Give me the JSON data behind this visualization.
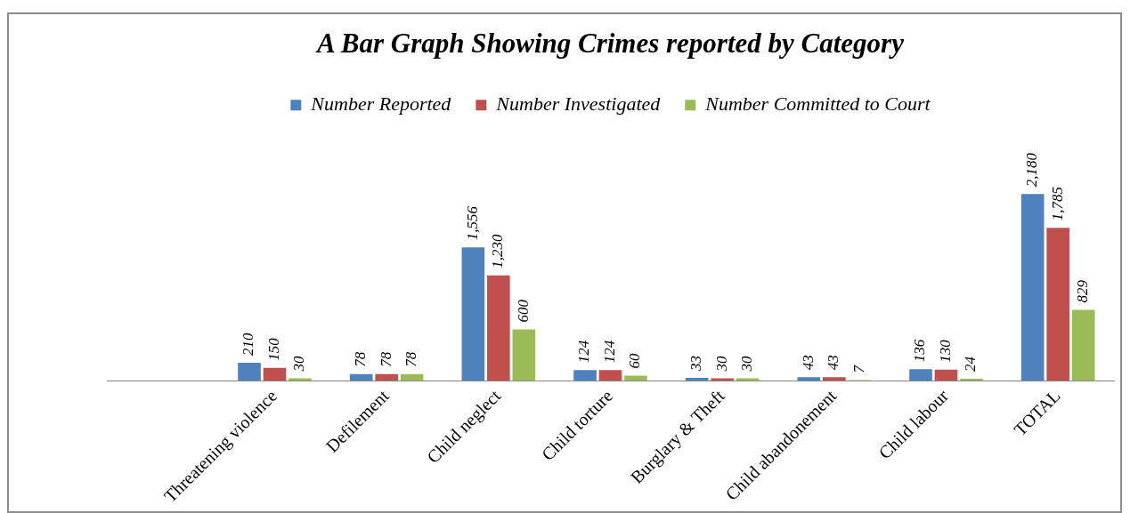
{
  "chart_data": {
    "type": "bar",
    "title": "A Bar Graph Showing Crimes reported by Category",
    "categories": [
      null,
      "Threatening violence",
      "Defilement",
      "Child neglect",
      "Child torture",
      "Burglary & Theft",
      "Child abandonement",
      "Child labour",
      "TOTAL"
    ],
    "series": [
      {
        "name": "Number Reported",
        "color": "#4f81bd",
        "values": [
          null,
          210,
          78,
          1556,
          124,
          33,
          43,
          136,
          2180
        ],
        "value_labels": [
          null,
          "210",
          "78",
          "1,556",
          "124",
          "33",
          "43",
          "136",
          "2,180"
        ]
      },
      {
        "name": "Number Investigated",
        "color": "#c0504d",
        "values": [
          null,
          150,
          78,
          1230,
          124,
          30,
          43,
          130,
          1785
        ],
        "value_labels": [
          null,
          "150",
          "78",
          "1,230",
          "124",
          "30",
          "43",
          "130",
          "1,785"
        ]
      },
      {
        "name": "Number Committed to Court",
        "color": "#9bbb59",
        "values": [
          null,
          30,
          78,
          600,
          60,
          30,
          7,
          24,
          829
        ],
        "value_labels": [
          null,
          "30",
          "78",
          "600",
          "60",
          "30",
          "7",
          "24",
          "829"
        ]
      }
    ],
    "legend": "top",
    "grid": false
  }
}
